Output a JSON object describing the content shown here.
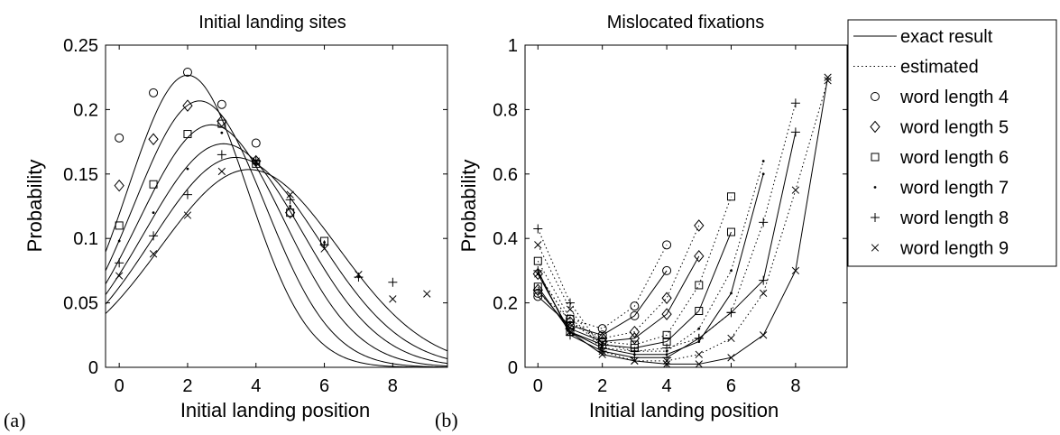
{
  "chart_data": [
    {
      "type": "line",
      "panel_label": "(a)",
      "title": "Initial landing sites",
      "xlabel": "Initial landing position",
      "ylabel": "Probability",
      "xlim": [
        -0.4,
        9.6
      ],
      "ylim": [
        0,
        0.25
      ],
      "xticks": [
        0,
        2,
        4,
        6,
        8
      ],
      "yticks": [
        0,
        0.05,
        0.1,
        0.15,
        0.2,
        0.25
      ],
      "xtick_labels": [
        "0",
        "2",
        "4",
        "6",
        "8"
      ],
      "ytick_labels": [
        "0",
        "0.05",
        "0.1",
        "0.15",
        "0.2",
        "0.25"
      ],
      "grid": false,
      "curves": [
        {
          "mean": 2.0,
          "sd": 1.76
        },
        {
          "mean": 2.35,
          "sd": 1.93
        },
        {
          "mean": 2.7,
          "sd": 2.12
        },
        {
          "mean": 3.05,
          "sd": 2.3
        },
        {
          "mean": 3.4,
          "sd": 2.45
        },
        {
          "mean": 3.8,
          "sd": 2.6
        }
      ],
      "series": [
        {
          "name": "word length 4",
          "marker": "circle",
          "x": [
            0,
            1,
            2,
            3,
            4
          ],
          "values": [
            0.178,
            0.213,
            0.229,
            0.204,
            0.174
          ]
        },
        {
          "name": "word length 5",
          "marker": "diamond",
          "x": [
            0,
            1,
            2,
            3,
            4,
            5
          ],
          "values": [
            0.141,
            0.177,
            0.203,
            0.191,
            0.16,
            0.12
          ]
        },
        {
          "name": "word length 6",
          "marker": "square",
          "x": [
            0,
            1,
            2,
            3,
            4,
            5,
            6
          ],
          "values": [
            0.11,
            0.142,
            0.181,
            0.189,
            0.158,
            0.12,
            0.098
          ]
        },
        {
          "name": "word length 7",
          "marker": "dot",
          "x": [
            0,
            1,
            2,
            3,
            4,
            5,
            6,
            7
          ],
          "values": [
            0.098,
            0.12,
            0.154,
            0.182,
            0.158,
            0.125,
            0.097,
            0.07
          ]
        },
        {
          "name": "word length 8",
          "marker": "plus",
          "x": [
            0,
            1,
            2,
            3,
            4,
            5,
            6,
            7,
            8
          ],
          "values": [
            0.081,
            0.102,
            0.134,
            0.165,
            0.16,
            0.13,
            0.095,
            0.07,
            0.066
          ]
        },
        {
          "name": "word length 9",
          "marker": "cross",
          "x": [
            0,
            1,
            2,
            3,
            4,
            5,
            6,
            7,
            8,
            9
          ],
          "values": [
            0.071,
            0.088,
            0.118,
            0.152,
            0.16,
            0.134,
            0.092,
            0.072,
            0.053,
            0.057
          ]
        }
      ]
    },
    {
      "type": "line",
      "panel_label": "(b)",
      "title": "Mislocated fixations",
      "xlabel": "Initial landing position",
      "ylabel": "Probability",
      "xlim": [
        -0.4,
        9.6
      ],
      "ylim": [
        0,
        1
      ],
      "xticks": [
        0,
        2,
        4,
        6,
        8
      ],
      "yticks": [
        0,
        0.2,
        0.4,
        0.6,
        0.8,
        1
      ],
      "xtick_labels": [
        "0",
        "2",
        "4",
        "6",
        "8"
      ],
      "ytick_labels": [
        "0",
        "0.2",
        "0.4",
        "0.6",
        "0.8",
        "1"
      ],
      "grid": false,
      "legend_position": "outside-right",
      "legend": [
        {
          "label": "exact result",
          "style": "solid"
        },
        {
          "label": "estimated",
          "style": "dotted"
        },
        {
          "label": "word length 4",
          "style": "circle"
        },
        {
          "label": "word length 5",
          "style": "diamond"
        },
        {
          "label": "word length 6",
          "style": "square"
        },
        {
          "label": "word length 7",
          "style": "dot"
        },
        {
          "label": "word length 8",
          "style": "plus"
        },
        {
          "label": "word length 9",
          "style": "cross"
        }
      ],
      "series": [
        {
          "name": "word length 4",
          "marker": "circle",
          "x": [
            0,
            1,
            2,
            3,
            4
          ],
          "exact": [
            0.22,
            0.13,
            0.1,
            0.16,
            0.3
          ],
          "estimated": [
            0.23,
            0.15,
            0.12,
            0.19,
            0.38
          ]
        },
        {
          "name": "word length 5",
          "marker": "diamond",
          "x": [
            0,
            1,
            2,
            3,
            4,
            5
          ],
          "exact": [
            0.24,
            0.12,
            0.08,
            0.09,
            0.165,
            0.345
          ],
          "estimated": [
            0.29,
            0.14,
            0.09,
            0.11,
            0.215,
            0.44
          ]
        },
        {
          "name": "word length 6",
          "marker": "square",
          "x": [
            0,
            1,
            2,
            3,
            4,
            5,
            6
          ],
          "exact": [
            0.25,
            0.11,
            0.07,
            0.06,
            0.08,
            0.175,
            0.42
          ],
          "estimated": [
            0.33,
            0.15,
            0.08,
            0.07,
            0.1,
            0.255,
            0.53
          ]
        },
        {
          "name": "word length 7",
          "marker": "dot",
          "x": [
            0,
            1,
            2,
            3,
            4,
            5,
            6,
            7
          ],
          "exact": [
            0.29,
            0.11,
            0.06,
            0.04,
            0.04,
            0.08,
            0.23,
            0.6
          ],
          "estimated": [
            0.29,
            0.14,
            0.075,
            0.05,
            0.05,
            0.12,
            0.3,
            0.64
          ]
        },
        {
          "name": "word length 8",
          "marker": "plus",
          "x": [
            0,
            1,
            2,
            3,
            4,
            5,
            6,
            7,
            8
          ],
          "exact": [
            0.3,
            0.1,
            0.05,
            0.03,
            0.03,
            0.09,
            0.17,
            0.27,
            0.73
          ],
          "estimated": [
            0.43,
            0.2,
            0.06,
            0.05,
            0.06,
            0.09,
            0.17,
            0.45,
            0.82
          ]
        },
        {
          "name": "word length 9",
          "marker": "cross",
          "x": [
            0,
            1,
            2,
            3,
            4,
            5,
            6,
            7,
            8,
            9
          ],
          "exact": [
            0.29,
            0.11,
            0.04,
            0.02,
            0.01,
            0.01,
            0.03,
            0.1,
            0.3,
            0.9
          ],
          "estimated": [
            0.38,
            0.18,
            0.05,
            0.02,
            0.02,
            0.04,
            0.09,
            0.23,
            0.55,
            0.89
          ]
        }
      ]
    }
  ]
}
